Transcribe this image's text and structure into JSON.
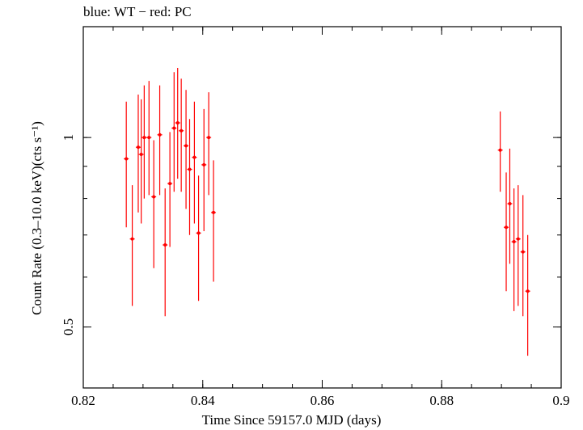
{
  "chart_data": {
    "type": "scatter",
    "title": "blue: WT − red: PC",
    "xlabel": "Time Since 59157.0 MJD (days)",
    "ylabel": "Count Rate (0.3–10.0 keV)(cts s⁻¹)",
    "xlim": [
      0.82,
      0.9
    ],
    "ylim": [
      0.4,
      1.5
    ],
    "y_scale": "log",
    "x_ticks": [
      "0.82",
      "0.84",
      "0.86",
      "0.88",
      "0.9"
    ],
    "y_ticks": [
      "0.5",
      "1"
    ],
    "grid": false,
    "series": [
      {
        "color": "#ff0000",
        "points": [
          {
            "x": 0.8272,
            "y": 0.925,
            "ylo": 0.72,
            "yhi": 1.14
          },
          {
            "x": 0.8282,
            "y": 0.69,
            "ylo": 0.54,
            "yhi": 0.84
          },
          {
            "x": 0.8292,
            "y": 0.965,
            "ylo": 0.76,
            "yhi": 1.17
          },
          {
            "x": 0.8297,
            "y": 0.94,
            "ylo": 0.73,
            "yhi": 1.15
          },
          {
            "x": 0.8302,
            "y": 1.0,
            "ylo": 0.8,
            "yhi": 1.21
          },
          {
            "x": 0.831,
            "y": 1.0,
            "ylo": 0.81,
            "yhi": 1.23
          },
          {
            "x": 0.8318,
            "y": 0.805,
            "ylo": 0.62,
            "yhi": 0.99
          },
          {
            "x": 0.8328,
            "y": 1.01,
            "ylo": 0.81,
            "yhi": 1.21
          },
          {
            "x": 0.8337,
            "y": 0.675,
            "ylo": 0.52,
            "yhi": 0.83
          },
          {
            "x": 0.8345,
            "y": 0.845,
            "ylo": 0.67,
            "yhi": 1.02
          },
          {
            "x": 0.8352,
            "y": 1.035,
            "ylo": 0.82,
            "yhi": 1.27
          },
          {
            "x": 0.8358,
            "y": 1.055,
            "ylo": 0.86,
            "yhi": 1.29
          },
          {
            "x": 0.8364,
            "y": 1.025,
            "ylo": 0.82,
            "yhi": 1.24
          },
          {
            "x": 0.8372,
            "y": 0.97,
            "ylo": 0.77,
            "yhi": 1.19
          },
          {
            "x": 0.8378,
            "y": 0.89,
            "ylo": 0.7,
            "yhi": 1.07
          },
          {
            "x": 0.8386,
            "y": 0.93,
            "ylo": 0.73,
            "yhi": 1.14
          },
          {
            "x": 0.8393,
            "y": 0.705,
            "ylo": 0.55,
            "yhi": 0.87
          },
          {
            "x": 0.8402,
            "y": 0.905,
            "ylo": 0.71,
            "yhi": 1.11
          },
          {
            "x": 0.841,
            "y": 1.0,
            "ylo": 0.81,
            "yhi": 1.18
          },
          {
            "x": 0.8418,
            "y": 0.76,
            "ylo": 0.59,
            "yhi": 0.92
          },
          {
            "x": 0.8898,
            "y": 0.955,
            "ylo": 0.82,
            "yhi": 1.1
          },
          {
            "x": 0.8908,
            "y": 0.72,
            "ylo": 0.57,
            "yhi": 0.88
          },
          {
            "x": 0.8914,
            "y": 0.785,
            "ylo": 0.63,
            "yhi": 0.96
          },
          {
            "x": 0.8921,
            "y": 0.683,
            "ylo": 0.53,
            "yhi": 0.83
          },
          {
            "x": 0.8928,
            "y": 0.69,
            "ylo": 0.54,
            "yhi": 0.84
          },
          {
            "x": 0.8936,
            "y": 0.658,
            "ylo": 0.52,
            "yhi": 0.81
          },
          {
            "x": 0.8944,
            "y": 0.57,
            "ylo": 0.45,
            "yhi": 0.7
          }
        ]
      }
    ]
  }
}
